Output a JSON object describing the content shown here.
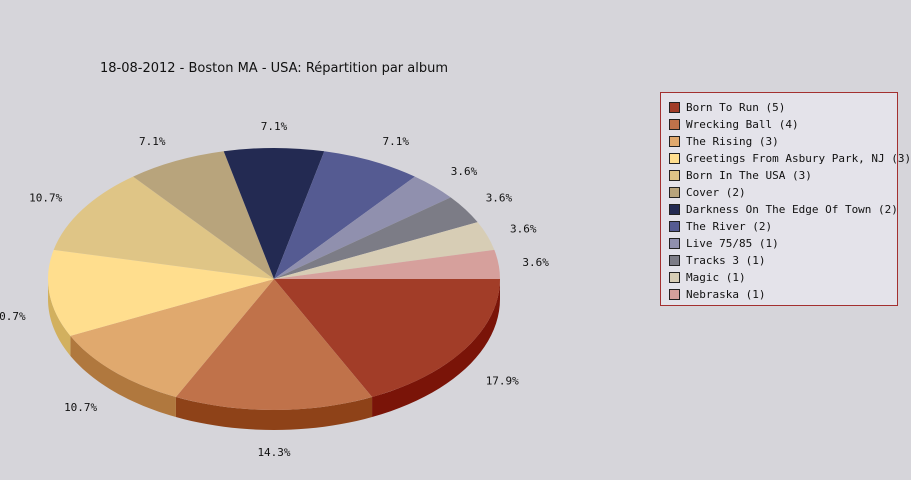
{
  "chart_data": {
    "type": "pie",
    "title": "18-08-2012 - Boston MA - USA:  Répartition par album",
    "legend_position": "right",
    "slices": [
      {
        "label": "Born To Run (5)",
        "value": 5,
        "percent": "17.9%",
        "color": "#a23d28",
        "side": "#7a1408"
      },
      {
        "label": "Wrecking Ball (4)",
        "value": 4,
        "percent": "14.3%",
        "color": "#c0724a",
        "side": "#8e4218"
      },
      {
        "label": "The Rising (3)",
        "value": 3,
        "percent": "10.7%",
        "color": "#e0a96e",
        "side": "#b0783e"
      },
      {
        "label": "Greetings From Asbury Park, NJ (3)",
        "value": 3,
        "percent": "10.7%",
        "color": "#ffde8e",
        "side": "#d2b05e"
      },
      {
        "label": "Born In The USA (3)",
        "value": 3,
        "percent": "10.7%",
        "color": "#dfc586",
        "side": "#b09656"
      },
      {
        "label": "Cover (2)",
        "value": 2,
        "percent": "7.1%",
        "color": "#b8a47c",
        "side": "#8a784e"
      },
      {
        "label": "Darkness On The Edge Of Town (2)",
        "value": 2,
        "percent": "7.1%",
        "color": "#232a52",
        "side": "#10152e"
      },
      {
        "label": "The River (2)",
        "value": 2,
        "percent": "7.1%",
        "color": "#555b92",
        "side": "#30356a"
      },
      {
        "label": "Live 75/85 (1)",
        "value": 1,
        "percent": "3.6%",
        "color": "#9090ae",
        "side": "#68688a"
      },
      {
        "label": "Tracks 3 (1)",
        "value": 1,
        "percent": "3.6%",
        "color": "#7c7c86",
        "side": "#56565e"
      },
      {
        "label": "Magic (1)",
        "value": 1,
        "percent": "3.6%",
        "color": "#d7cdb5",
        "side": "#aaa088"
      },
      {
        "label": "Nebraska (1)",
        "value": 1,
        "percent": "3.6%",
        "color": "#d6a09c",
        "side": "#a87470"
      }
    ]
  }
}
